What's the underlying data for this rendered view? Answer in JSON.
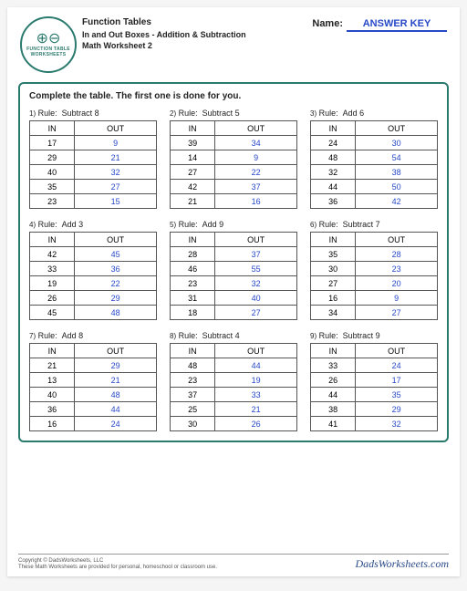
{
  "header": {
    "title1": "Function Tables",
    "title2": "In and Out Boxes - Addition & Subtraction",
    "title3": "Math Worksheet 2",
    "badge_line1": "FUNCTION TABLE",
    "badge_line2": "WORKSHEETS",
    "name_label": "Name:",
    "name_value": "ANSWER KEY"
  },
  "instruction": "Complete the table. The first one is done for you.",
  "col_in": "IN",
  "col_out": "OUT",
  "rule_prefix": "Rule:",
  "tables": [
    {
      "n": "1)",
      "rule": "Subtract 8",
      "rows": [
        [
          "17",
          "9"
        ],
        [
          "29",
          "21"
        ],
        [
          "40",
          "32"
        ],
        [
          "35",
          "27"
        ],
        [
          "23",
          "15"
        ]
      ]
    },
    {
      "n": "2)",
      "rule": "Subtract 5",
      "rows": [
        [
          "39",
          "34"
        ],
        [
          "14",
          "9"
        ],
        [
          "27",
          "22"
        ],
        [
          "42",
          "37"
        ],
        [
          "21",
          "16"
        ]
      ]
    },
    {
      "n": "3)",
      "rule": "Add 6",
      "rows": [
        [
          "24",
          "30"
        ],
        [
          "48",
          "54"
        ],
        [
          "32",
          "38"
        ],
        [
          "44",
          "50"
        ],
        [
          "36",
          "42"
        ]
      ]
    },
    {
      "n": "4)",
      "rule": "Add 3",
      "rows": [
        [
          "42",
          "45"
        ],
        [
          "33",
          "36"
        ],
        [
          "19",
          "22"
        ],
        [
          "26",
          "29"
        ],
        [
          "45",
          "48"
        ]
      ]
    },
    {
      "n": "5)",
      "rule": "Add 9",
      "rows": [
        [
          "28",
          "37"
        ],
        [
          "46",
          "55"
        ],
        [
          "23",
          "32"
        ],
        [
          "31",
          "40"
        ],
        [
          "18",
          "27"
        ]
      ]
    },
    {
      "n": "6)",
      "rule": "Subtract 7",
      "rows": [
        [
          "35",
          "28"
        ],
        [
          "30",
          "23"
        ],
        [
          "27",
          "20"
        ],
        [
          "16",
          "9"
        ],
        [
          "34",
          "27"
        ]
      ]
    },
    {
      "n": "7)",
      "rule": "Add 8",
      "rows": [
        [
          "21",
          "29"
        ],
        [
          "13",
          "21"
        ],
        [
          "40",
          "48"
        ],
        [
          "36",
          "44"
        ],
        [
          "16",
          "24"
        ]
      ]
    },
    {
      "n": "8)",
      "rule": "Subtract 4",
      "rows": [
        [
          "48",
          "44"
        ],
        [
          "23",
          "19"
        ],
        [
          "37",
          "33"
        ],
        [
          "25",
          "21"
        ],
        [
          "30",
          "26"
        ]
      ]
    },
    {
      "n": "9)",
      "rule": "Subtract 9",
      "rows": [
        [
          "33",
          "24"
        ],
        [
          "26",
          "17"
        ],
        [
          "44",
          "35"
        ],
        [
          "38",
          "29"
        ],
        [
          "41",
          "32"
        ]
      ]
    }
  ],
  "footer": {
    "copyright": "Copyright © DadsWorksheets, LLC",
    "note": "These Math Worksheets are provided for personal, homeschool or classroom use.",
    "brand": "DadsWorksheets.com"
  },
  "colors": {
    "accent": "#2a7a6e",
    "answer": "#2749c8",
    "border": "#555555"
  }
}
